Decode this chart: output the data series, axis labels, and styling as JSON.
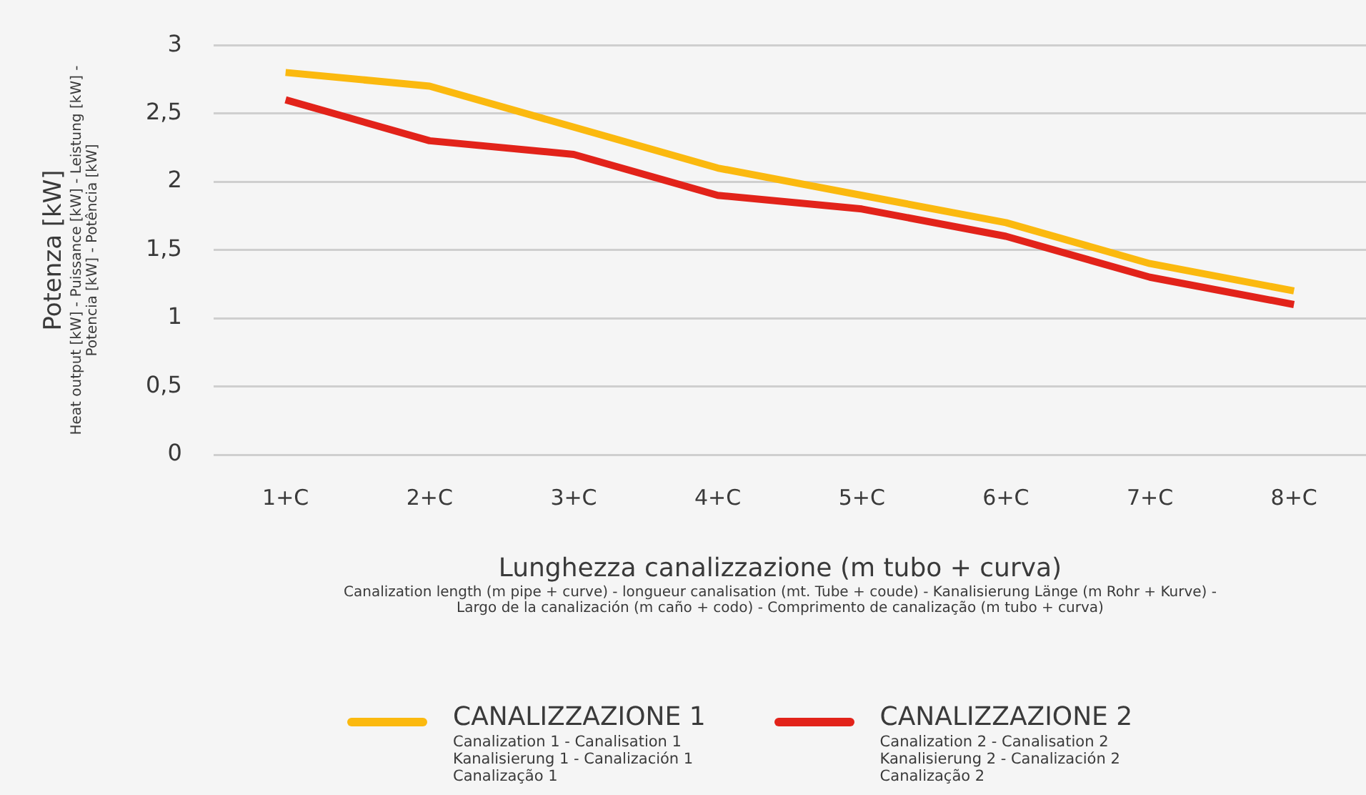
{
  "chart_data": {
    "type": "line",
    "xlabel": "Lunghezza canalizzazione (m tubo + curva)\nCanalization length (m pipe + curve) - longueur canalisation (mt. Tube + coude) - Kanalisierung Länge (m Rohr + Kurve) -\nLargo de la canalización (m caño + codo) - Comprimento de canalização (m tubo + curva)",
    "ylabel": "Potenza [kW]\nHeat output [kW] - Puissance [kW] - Leistung [kW] -\nPotencia [kW] - Potência [kW]",
    "categories": [
      "1+C",
      "2+C",
      "3+C",
      "4+C",
      "5+C",
      "6+C",
      "7+C",
      "8+C"
    ],
    "series": [
      {
        "name": "CANALIZZAZIONE 1\nCanalization 1 - Canalisation 1\nKanalisierung 1 - Canalización 1\nCanalização 1",
        "color": "#fbb90f",
        "values": [
          2.8,
          2.7,
          2.4,
          2.1,
          1.9,
          1.7,
          1.4,
          1.2
        ]
      },
      {
        "name": "CANALIZZAZIONE 2\nCanalization 2 - Canalisation 2\nKanalisierung 2 - Canalización 2\nCanalização 2",
        "color": "#e2231a",
        "values": [
          2.6,
          2.3,
          2.2,
          1.9,
          1.8,
          1.6,
          1.3,
          1.1
        ]
      }
    ],
    "ylim": [
      0,
      3
    ],
    "yticks": [
      0,
      {
        "value": 0.5,
        "label": "0,5"
      },
      1,
      {
        "value": 1.5,
        "label": "1,5"
      },
      2,
      {
        "value": 2.5,
        "label": "2,5"
      },
      3
    ],
    "grid": "y",
    "legend": "bottom",
    "marker": "none",
    "line_style": "solid"
  }
}
